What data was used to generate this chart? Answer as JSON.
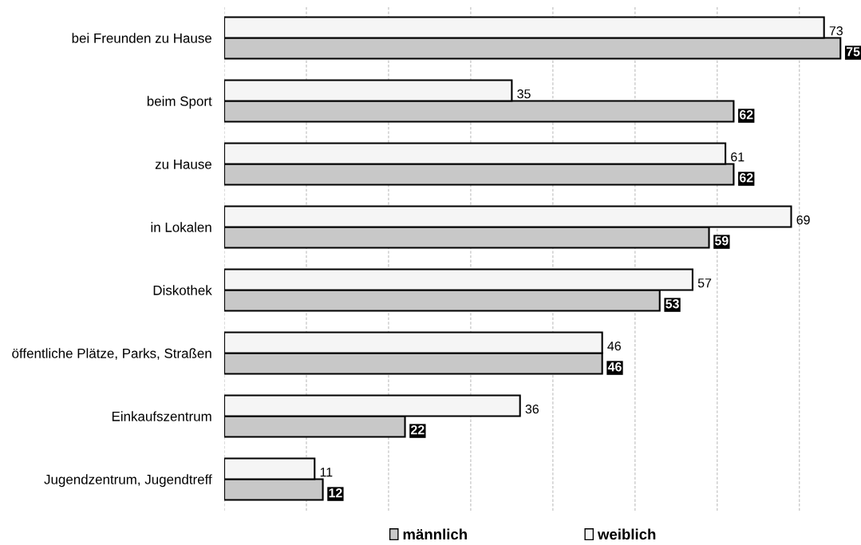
{
  "chart_data": {
    "type": "bar",
    "orientation": "horizontal",
    "categories": [
      "bei Freunden zu Hause",
      "beim Sport",
      "zu Hause",
      "in Lokalen",
      "Diskothek",
      "öffentliche Plätze, Parks, Straßen",
      "Einkaufszentrum",
      "Jugendzentrum, Jugendtreff"
    ],
    "series": [
      {
        "name": "männlich",
        "color": "#c8c8c8",
        "values": [
          75,
          62,
          62,
          59,
          53,
          46,
          22,
          12
        ]
      },
      {
        "name": "weiblich",
        "color": "#f5f5f5",
        "values": [
          73,
          35,
          61,
          69,
          57,
          46,
          36,
          11
        ]
      }
    ],
    "xticks": [
      {
        "value": 0,
        "label": null
      },
      {
        "value": 10,
        "label": null
      },
      {
        "value": 20,
        "label": null
      },
      {
        "value": 30,
        "label": null
      },
      {
        "value": 40,
        "label": null
      },
      {
        "value": 50,
        "label": null
      },
      {
        "value": 60,
        "label": null
      },
      {
        "value": 70,
        "label": null
      }
    ],
    "grid": "x",
    "legend": "bottom",
    "data_labels": true,
    "tick_labels": "y"
  }
}
